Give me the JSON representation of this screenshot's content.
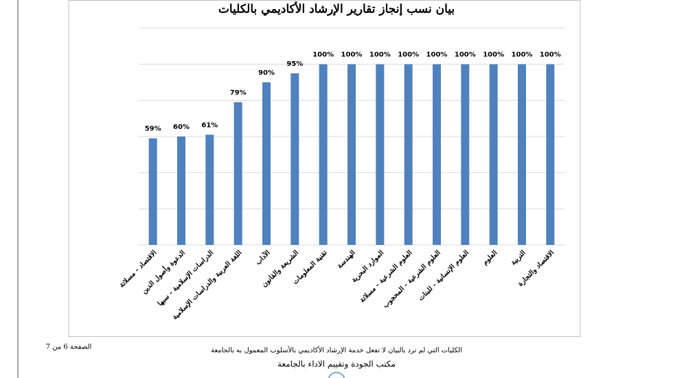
{
  "chart_data": {
    "type": "bar",
    "title": "بيان نسب إنجاز تقارير الإرشاد الأكاديمي بالكليات",
    "categories": [
      "الاقتصاد - مسلاتة",
      "الدعوة وأصول الدين",
      "الدراسات الإسلامية - سبها",
      "اللغة العربية والدراسات الإسلامية",
      "الآداب",
      "الشريعة والقانون",
      "تقنية المعلومات",
      "الهندسة",
      "الموارد البحرية",
      "العلوم الشرعية - مسلاتة",
      "العلوم الشرعية - المحجوب",
      "العلوم الإنسانية - للبنات",
      "العلوم",
      "التربية",
      "الاقتصاد والتجارة"
    ],
    "values": [
      59,
      60,
      61,
      79,
      90,
      95,
      100,
      100,
      100,
      100,
      100,
      100,
      100,
      100,
      100
    ],
    "value_labels": [
      "59%",
      "60%",
      "61%",
      "79%",
      "90%",
      "95%",
      "100%",
      "100%",
      "100%",
      "100%",
      "100%",
      "100%",
      "100%",
      "100%",
      "100%"
    ],
    "color": "#4f81bd",
    "ylim": [
      0,
      120
    ],
    "yticks": [
      0,
      20,
      40,
      60,
      80,
      100,
      120
    ],
    "grid": true
  },
  "footer": {
    "page": "الصفحة 6 من 7",
    "note": "الكليات التي لم ترد بالبيان لا تفعل خدمة الإرشاد الأكاديمي بالأسلوب المعمول به بالجامعة",
    "office": "مكتب الجودة وتقييم الاداء بالجامعة"
  }
}
